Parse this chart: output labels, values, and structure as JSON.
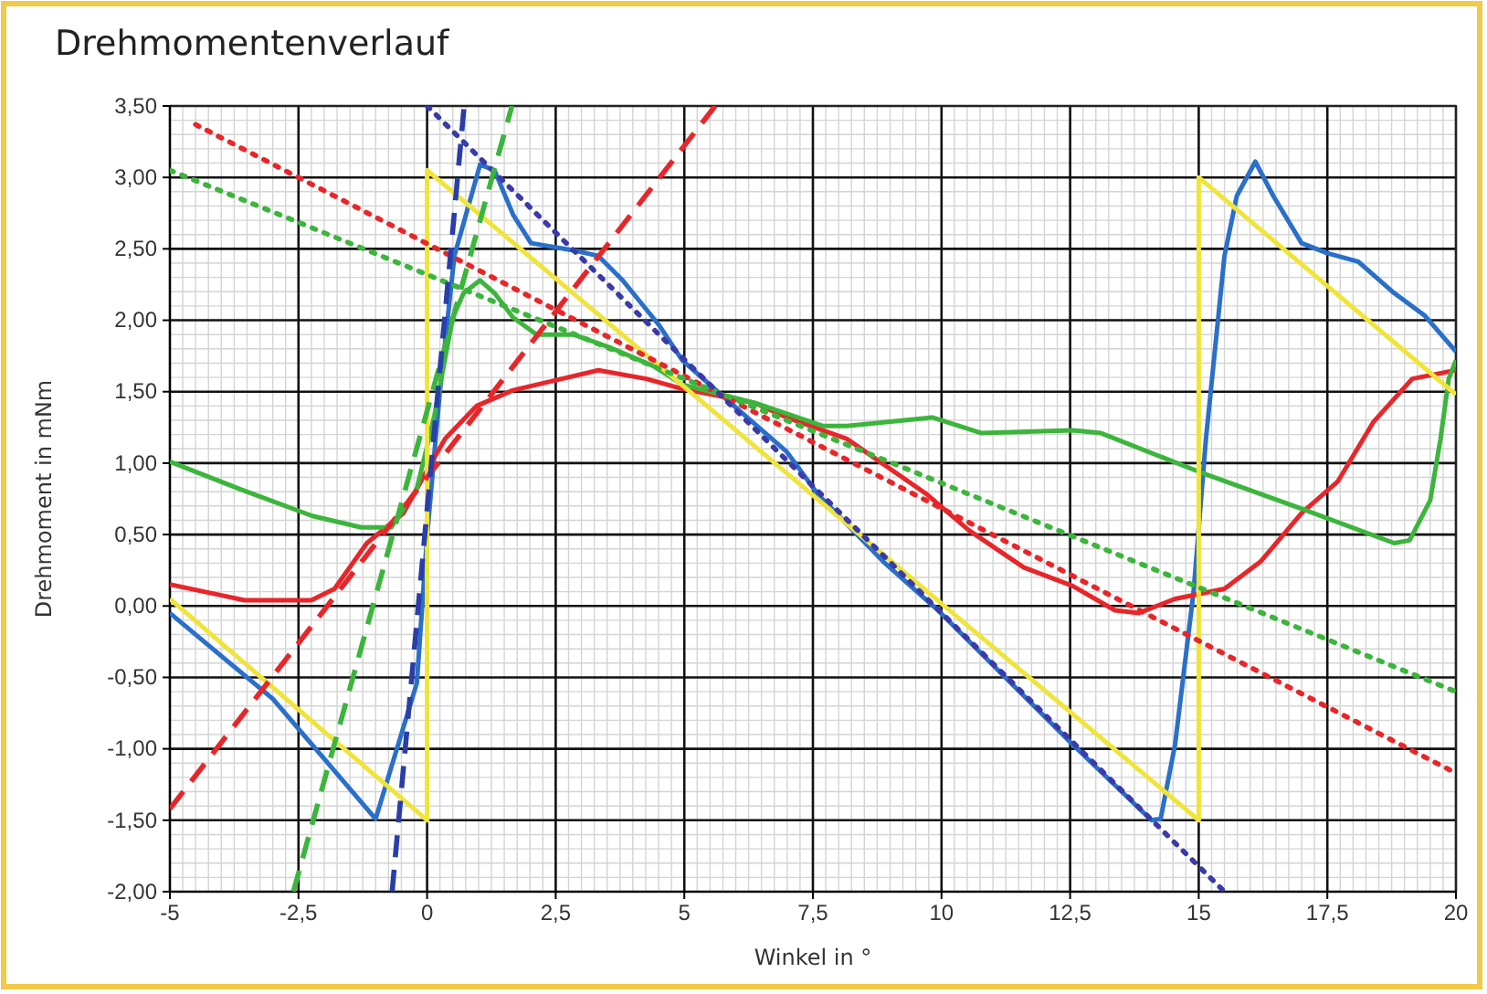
{
  "chart_data": {
    "type": "line",
    "title": "Drehmomentenverlauf",
    "xlabel": "Winkel in °",
    "ylabel": "Drehmoment in mNm",
    "xlim": [
      -5,
      20
    ],
    "ylim": [
      -2,
      3.5
    ],
    "xticks": [
      -5,
      {
        "value": -2.5,
        "label": "-2,5"
      },
      0,
      {
        "value": 2.5,
        "label": "2,5"
      },
      5,
      {
        "value": 7.5,
        "label": "7,5"
      },
      10,
      {
        "value": 12.5,
        "label": "12,5"
      },
      15,
      {
        "value": 17.5,
        "label": "17,5"
      },
      20
    ],
    "yticks": [
      {
        "value": -2,
        "label": "-2,00"
      },
      {
        "value": -1.5,
        "label": "-1,50"
      },
      {
        "value": -1,
        "label": "-1,00"
      },
      {
        "value": -0.5,
        "label": "-0,50"
      },
      {
        "value": 0,
        "label": "0,00"
      },
      {
        "value": 0.5,
        "label": "0,50"
      },
      {
        "value": 1,
        "label": "1,00"
      },
      {
        "value": 1.5,
        "label": "1,50"
      },
      {
        "value": 2,
        "label": "2,00"
      },
      {
        "value": 2.5,
        "label": "2,50"
      },
      {
        "value": 3,
        "label": "3,00"
      },
      {
        "value": 3.5,
        "label": "3,50"
      }
    ],
    "grid": true,
    "marker": "none",
    "series": [
      {
        "color": "#2a6fc9",
        "line_style": "solid",
        "x": [
          -5,
          -3,
          -1.0,
          -0.2,
          0.0,
          0.25,
          0.53,
          1.03,
          1.31,
          1.67,
          2.02,
          2.84,
          3.33,
          3.8,
          4.5,
          4.96,
          5.9,
          6.99,
          7.6,
          8.87,
          9.93,
          12.55,
          14.08,
          14.26,
          14.54,
          14.9,
          15.14,
          15.5,
          15.74,
          16.1,
          16.45,
          17.0,
          17.5,
          18.1,
          18.8,
          19.4,
          20
        ],
        "values": [
          -0.05,
          -0.65,
          -1.49,
          -0.54,
          0.49,
          1.51,
          2.45,
          3.09,
          3.05,
          2.74,
          2.54,
          2.49,
          2.45,
          2.28,
          1.97,
          1.72,
          1.42,
          1.08,
          0.78,
          0.31,
          -0.03,
          -0.97,
          -1.5,
          -1.49,
          -0.97,
          0.1,
          1.17,
          2.45,
          2.87,
          3.11,
          2.87,
          2.54,
          2.47,
          2.41,
          2.19,
          2.03,
          1.78
        ]
      },
      {
        "color": "#e8262a",
        "line_style": "solid",
        "x": [
          -5,
          -3.55,
          -2.25,
          -1.8,
          -1.17,
          -0.46,
          0,
          0.35,
          0.96,
          1.67,
          2.62,
          3.33,
          4.26,
          4.96,
          6.38,
          6.99,
          8.16,
          9.72,
          10.53,
          11.6,
          12.55,
          13.37,
          13.83,
          14.54,
          15.5,
          16.2,
          17.0,
          17.7,
          18.4,
          19.15,
          20
        ],
        "values": [
          0.15,
          0.04,
          0.04,
          0.12,
          0.44,
          0.65,
          0.95,
          1.17,
          1.4,
          1.51,
          1.59,
          1.65,
          1.59,
          1.52,
          1.42,
          1.32,
          1.17,
          0.78,
          0.53,
          0.27,
          0.14,
          -0.03,
          -0.05,
          0.05,
          0.12,
          0.31,
          0.65,
          0.87,
          1.29,
          1.59,
          1.65
        ]
      },
      {
        "color": "#3cb53c",
        "line_style": "solid",
        "x": [
          -5,
          -3.65,
          -2.23,
          -1.28,
          -0.7,
          -0.2,
          0.14,
          0.5,
          0.71,
          1.03,
          1.31,
          1.67,
          2.13,
          2.84,
          3.55,
          4.4,
          4.96,
          6.38,
          7.7,
          8.16,
          9.82,
          10.78,
          12.55,
          13.1,
          15.0,
          17.0,
          18.8,
          19.1,
          19.5,
          19.7,
          19.86,
          20
        ],
        "values": [
          1.01,
          0.82,
          0.63,
          0.55,
          0.55,
          0.82,
          1.33,
          2.02,
          2.19,
          2.28,
          2.19,
          2.02,
          1.9,
          1.9,
          1.81,
          1.68,
          1.55,
          1.42,
          1.26,
          1.26,
          1.32,
          1.21,
          1.23,
          1.21,
          0.94,
          0.68,
          0.44,
          0.46,
          0.74,
          1.17,
          1.59,
          1.72
        ]
      },
      {
        "color": "#f0e43a",
        "line_style": "solid",
        "x": [
          -5,
          0,
          0,
          15,
          15,
          20
        ],
        "values": [
          0.05,
          -1.5,
          3.05,
          -1.5,
          3.0,
          1.48
        ]
      },
      {
        "color": "#e8262a",
        "line_style": "dotted",
        "x": [
          -4.5,
          20
        ],
        "values": [
          3.37,
          -1.17
        ]
      },
      {
        "color": "#3cb53c",
        "line_style": "dotted",
        "x": [
          -5,
          20
        ],
        "values": [
          3.05,
          -0.6
        ]
      },
      {
        "color": "#3a3aa8",
        "line_style": "dotted",
        "x": [
          0,
          15.5
        ],
        "values": [
          3.5,
          -2.0
        ]
      },
      {
        "color": "#e8262a",
        "line_style": "dashed",
        "x": [
          -5,
          5.6
        ],
        "values": [
          -1.42,
          3.5
        ]
      },
      {
        "color": "#3cb53c",
        "line_style": "dashed",
        "x": [
          -2.6,
          1.65
        ],
        "values": [
          -2.0,
          3.5
        ]
      },
      {
        "color": "#2a3ea8",
        "line_style": "dashed",
        "x": [
          -0.68,
          0.72
        ],
        "values": [
          -2.0,
          3.5
        ]
      }
    ]
  }
}
